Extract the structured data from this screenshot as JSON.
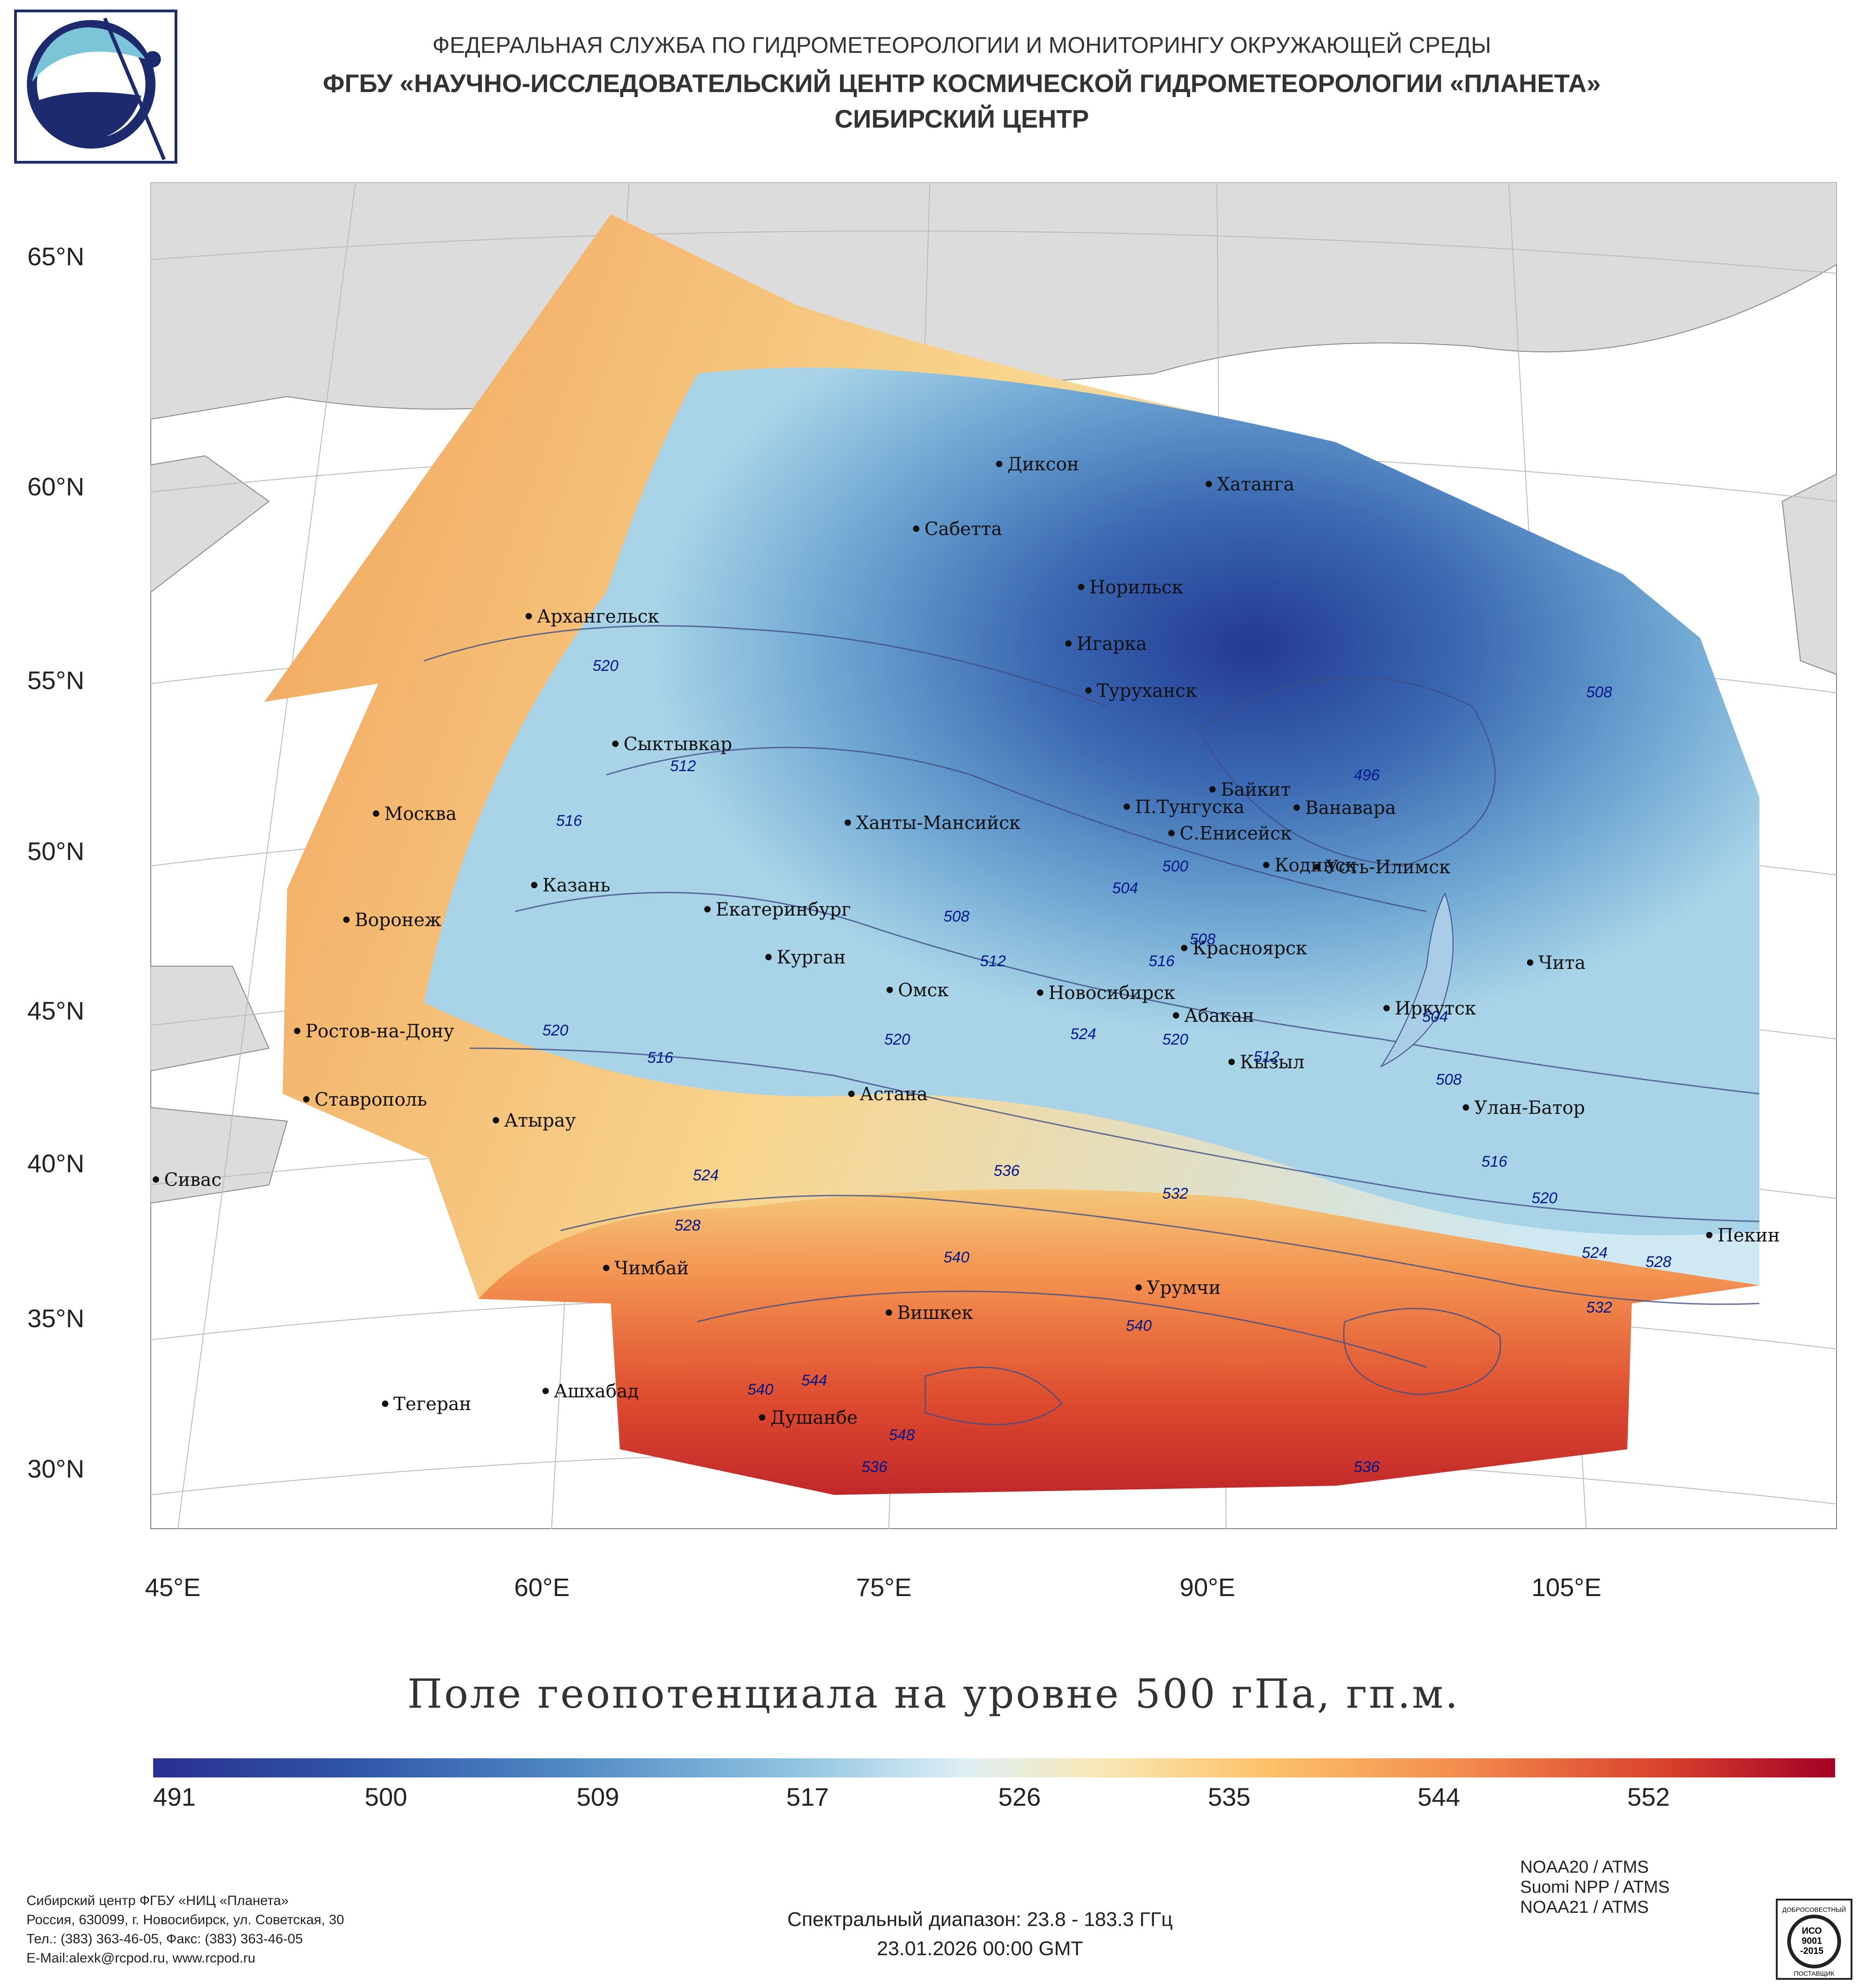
{
  "header": {
    "line1": "ФЕДЕРАЛЬНАЯ СЛУЖБА ПО ГИДРОМЕТЕОРОЛОГИИ И МОНИТОРИНГУ ОКРУЖАЮЩЕЙ СРЕДЫ",
    "line2": "ФГБУ «НАУЧНО-ИССЛЕДОВАТЕЛЬСКИЙ ЦЕНТР КОСМИЧЕСКОЙ ГИДРОМЕТЕОРОЛОГИИ «ПЛАНЕТА»",
    "line3": "СИБИРСКИЙ ЦЕНТР"
  },
  "map": {
    "lat_labels": [
      "65°N",
      "60°N",
      "55°N",
      "50°N",
      "45°N",
      "40°N",
      "35°N",
      "30°N"
    ],
    "lon_labels": [
      "45°E",
      "60°E",
      "75°E",
      "90°E",
      "105°E"
    ],
    "cities": [
      "Диксон",
      "Хатанга",
      "Сабетта",
      "Норильск",
      "Архангельск",
      "Игарка",
      "Туруханск",
      "Сыктывкар",
      "Байкит",
      "Москва",
      "Ханты-Мансийск",
      "П.Тунгуска",
      "Ванавара",
      "С.Енисейск",
      "Кодинск",
      "Усть-Илимск",
      "Казань",
      "Екатеринбург",
      "Воронеж",
      "Красноярск",
      "Курган",
      "Чита",
      "Омск",
      "Новосибирск",
      "Иркутск",
      "Абакан",
      "Ростов-на-Дону",
      "Кызыл",
      "Астана",
      "Улан-Батор",
      "Ставрополь",
      "Атырау",
      "Сивас",
      "Пекин",
      "Чимбай",
      "Урумчи",
      "Вишкек",
      "Ашхабад",
      "Тегеран",
      "Душанбе"
    ],
    "contour_labels": [
      "520",
      "512",
      "516",
      "508",
      "512",
      "496",
      "508",
      "500",
      "504",
      "508",
      "516",
      "504",
      "520",
      "516",
      "520",
      "524",
      "520",
      "512",
      "508",
      "524",
      "528",
      "532",
      "536",
      "540",
      "544",
      "540",
      "540",
      "548",
      "536",
      "536",
      "524",
      "528",
      "532",
      "516",
      "520"
    ]
  },
  "legend": {
    "title": "Поле геопотенциала на уровне 500 гПа, гп.м.",
    "ticks": [
      "491",
      "500",
      "509",
      "517",
      "526",
      "535",
      "544",
      "552"
    ]
  },
  "footer": {
    "org": "Сибирский центр ФГБУ «НИЦ «Планета»",
    "address": "Россия, 630099, г. Новосибирск, ул. Советская, 30",
    "phone": "Тел.: (383) 363-46-05, Факс: (383) 363-46-05",
    "email": "E-Mail:alexk@rcpod.ru, www.rcpod.ru",
    "spectral": "Спектральный диапазон: 23.8 - 183.3 ГГц",
    "datetime": "23.01.2026 00:00 GMT",
    "sensors": [
      "NOAA20 / ATMS",
      "Suomi NPP / ATMS",
      "NOAA21 / ATMS"
    ],
    "iso_top": "ДОБРОСОВЕСТНЫЙ",
    "iso_mid1": "ИСО",
    "iso_mid2": "9001",
    "iso_mid3": "-2015",
    "iso_bottom": "ПОСТАВЩИК"
  },
  "colors": {
    "low": "#2a2f8f",
    "mid": "#dceef5",
    "high": "#a50026",
    "land": "#dcdcdc",
    "contour": "#4a5a8a"
  }
}
